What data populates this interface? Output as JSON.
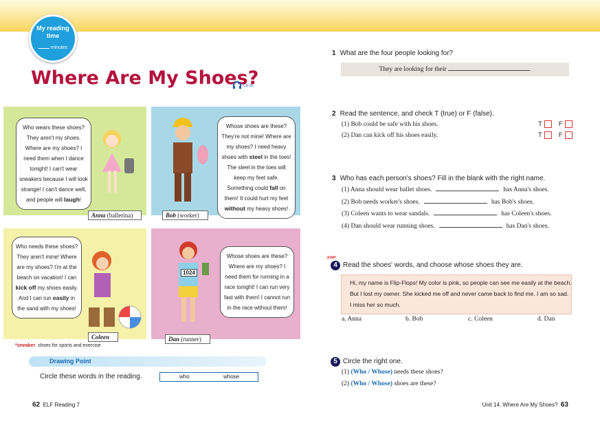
{
  "header": {
    "reading_time": "My reading time",
    "minutes": "minutes",
    "title": "Where Are My Shoes?",
    "cd": "CD-26"
  },
  "panels": [
    {
      "name": "Anna",
      "role": "(ballerina)",
      "speech": [
        {
          "text": "Who wears these shoes? They aren't my shoes. Where are my shoes? I need them when I dance tonight! I can't wear sneakers because I will look strange! I can't dance well, and people will ",
          "bold": false
        },
        {
          "text": "laugh",
          "bold": true
        },
        {
          "text": "!",
          "bold": false
        }
      ]
    },
    {
      "name": "Bob",
      "role": "(worker)",
      "speech": [
        {
          "text": "Whose shoes are these? They're not mine! Where are my shoes? I need heavy shoes with ",
          "bold": false
        },
        {
          "text": "steel",
          "bold": true
        },
        {
          "text": " in the toes! The steel in the toes will keep my feet safe. Something could ",
          "bold": false
        },
        {
          "text": "fall",
          "bold": true
        },
        {
          "text": " on them! It could hurt my feet ",
          "bold": false
        },
        {
          "text": "without",
          "bold": true
        },
        {
          "text": " my heavy shoes!",
          "bold": false
        }
      ]
    },
    {
      "name": "Coleen",
      "role": "",
      "speech": [
        {
          "text": "Who needs these shoes? They aren't mine! Where are my shoes? I'm at the beach on vacation! I can ",
          "bold": false
        },
        {
          "text": "kick off",
          "bold": true
        },
        {
          "text": " my shoes easily. And I can run ",
          "bold": false
        },
        {
          "text": "easily",
          "bold": true
        },
        {
          "text": " in the sand with my shoes!",
          "bold": false
        }
      ]
    },
    {
      "name": "Dan",
      "role": "(runner)",
      "bib": "1024",
      "speech": [
        {
          "text": "Whose shoes are these? Where are my shoes? I need them for running in a race tonight! I can run very fast with them! I cannot run in the race without them!",
          "bold": false
        }
      ]
    }
  ],
  "footnote": {
    "word": "*sneaker",
    "meaning": "shoes for sports and exercise"
  },
  "drawing_point": {
    "title": "Drawing Point",
    "instruction": "Circle these words in the reading.",
    "words": [
      "who",
      "whose"
    ]
  },
  "footer": {
    "left_page": "62",
    "left_book": "ELF Reading 7",
    "right_unit": "Unit 14. Where Are My Shoes?",
    "right_page": "63"
  },
  "questions": [
    {
      "number": "1",
      "text": "What are the four people looking for?",
      "answer_before": "They are looking for their",
      "answer_after": "."
    },
    {
      "number": "2",
      "text": "Read the sentence, and check T (true) or F (false).",
      "true": "T",
      "false": "F",
      "items": [
        "(1) Bob could be safe with his shoes.",
        "(2) Dan can kick off his shoes easily."
      ]
    },
    {
      "number": "3",
      "text": "Who has each person's shoes? Fill in the blank with the right name.",
      "items": [
        [
          "(1) Anna should wear ballet shoes.",
          "has Anna's shoes."
        ],
        [
          "(2) Bob needs worker's shoes.",
          "has Bob's shoes."
        ],
        [
          "(3) Coleen wants to wear sandals.",
          "has Coleen's shoes."
        ],
        [
          "(4) Dan should wear running shoes.",
          "has Dan's shoes."
        ]
      ]
    },
    {
      "jump": "JUMP",
      "number": "4",
      "text": "Read the shoes' words, and choose whose shoes they are.",
      "passage": [
        "Hi, my name is Flip-Flops! My color is pink, so people can see me easily at the beach.",
        "But I lost my owner. She kicked me off and never came back to find me. I am so sad.",
        "I miss her so much."
      ],
      "options": [
        "a. Anna",
        "b. Bob",
        "c. Coleen",
        "d. Dan"
      ]
    },
    {
      "number": "5",
      "text": "Circle the right one.",
      "items": [
        [
          "(1)",
          "(Who / Whose)",
          "needs these shoes?"
        ],
        [
          "(2)",
          "(Who / Whose)",
          "shoes are these?"
        ]
      ]
    }
  ]
}
